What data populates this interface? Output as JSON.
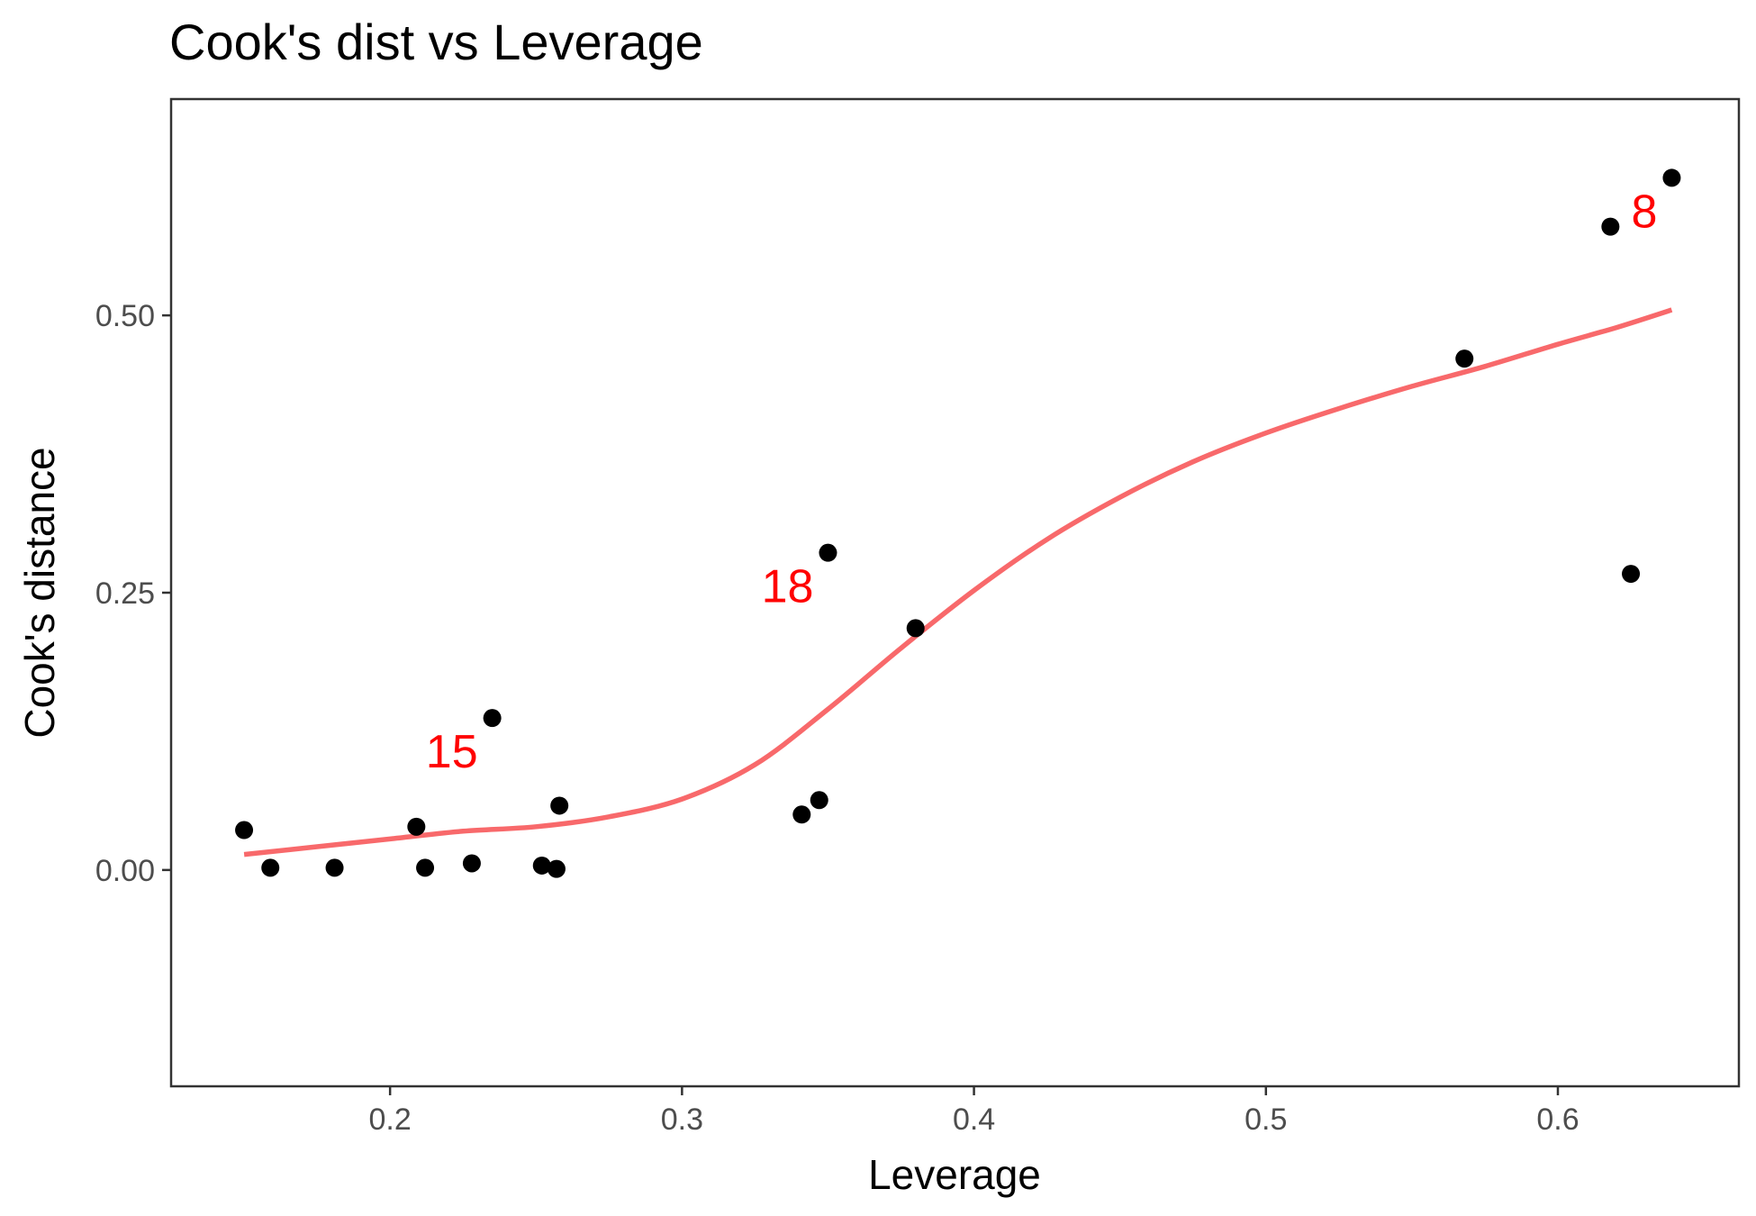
{
  "chart_data": {
    "type": "scatter",
    "title": "Cook's dist vs Leverage",
    "xlabel": "Leverage",
    "ylabel": "Cook's distance",
    "xlim": [
      0.125,
      0.662
    ],
    "ylim": [
      -0.195,
      0.695
    ],
    "x_ticks": [
      0.2,
      0.3,
      0.4,
      0.5,
      0.6
    ],
    "x_tick_labels": [
      "0.2",
      "0.3",
      "0.4",
      "0.5",
      "0.6"
    ],
    "y_ticks": [
      0.0,
      0.25,
      0.5
    ],
    "y_tick_labels": [
      "0.00",
      "0.25",
      "0.50"
    ],
    "grid": false,
    "point_color": "#000000",
    "points": [
      {
        "x": 0.15,
        "y": 0.036
      },
      {
        "x": 0.159,
        "y": 0.002
      },
      {
        "x": 0.181,
        "y": 0.002
      },
      {
        "x": 0.209,
        "y": 0.039
      },
      {
        "x": 0.212,
        "y": 0.002
      },
      {
        "x": 0.228,
        "y": 0.006
      },
      {
        "x": 0.235,
        "y": 0.137
      },
      {
        "x": 0.252,
        "y": 0.004
      },
      {
        "x": 0.257,
        "y": 0.001
      },
      {
        "x": 0.258,
        "y": 0.058
      },
      {
        "x": 0.341,
        "y": 0.05
      },
      {
        "x": 0.347,
        "y": 0.063
      },
      {
        "x": 0.35,
        "y": 0.286
      },
      {
        "x": 0.38,
        "y": 0.218
      },
      {
        "x": 0.568,
        "y": 0.461
      },
      {
        "x": 0.618,
        "y": 0.58
      },
      {
        "x": 0.625,
        "y": 0.267
      },
      {
        "x": 0.639,
        "y": 0.624
      }
    ],
    "smooth": {
      "color": "#f8696b",
      "x": [
        0.15,
        0.175,
        0.2,
        0.225,
        0.25,
        0.275,
        0.3,
        0.325,
        0.35,
        0.375,
        0.4,
        0.425,
        0.45,
        0.475,
        0.5,
        0.525,
        0.55,
        0.575,
        0.6,
        0.62,
        0.639
      ],
      "y": [
        0.014,
        0.021,
        0.028,
        0.035,
        0.039,
        0.048,
        0.064,
        0.095,
        0.145,
        0.2,
        0.252,
        0.298,
        0.336,
        0.368,
        0.394,
        0.416,
        0.436,
        0.454,
        0.474,
        0.489,
        0.505
      ]
    },
    "annotations": [
      {
        "text": "15",
        "x": 0.235,
        "y": 0.137
      },
      {
        "text": "18",
        "x": 0.35,
        "y": 0.286
      },
      {
        "text": "8",
        "x": 0.639,
        "y": 0.624
      }
    ]
  }
}
